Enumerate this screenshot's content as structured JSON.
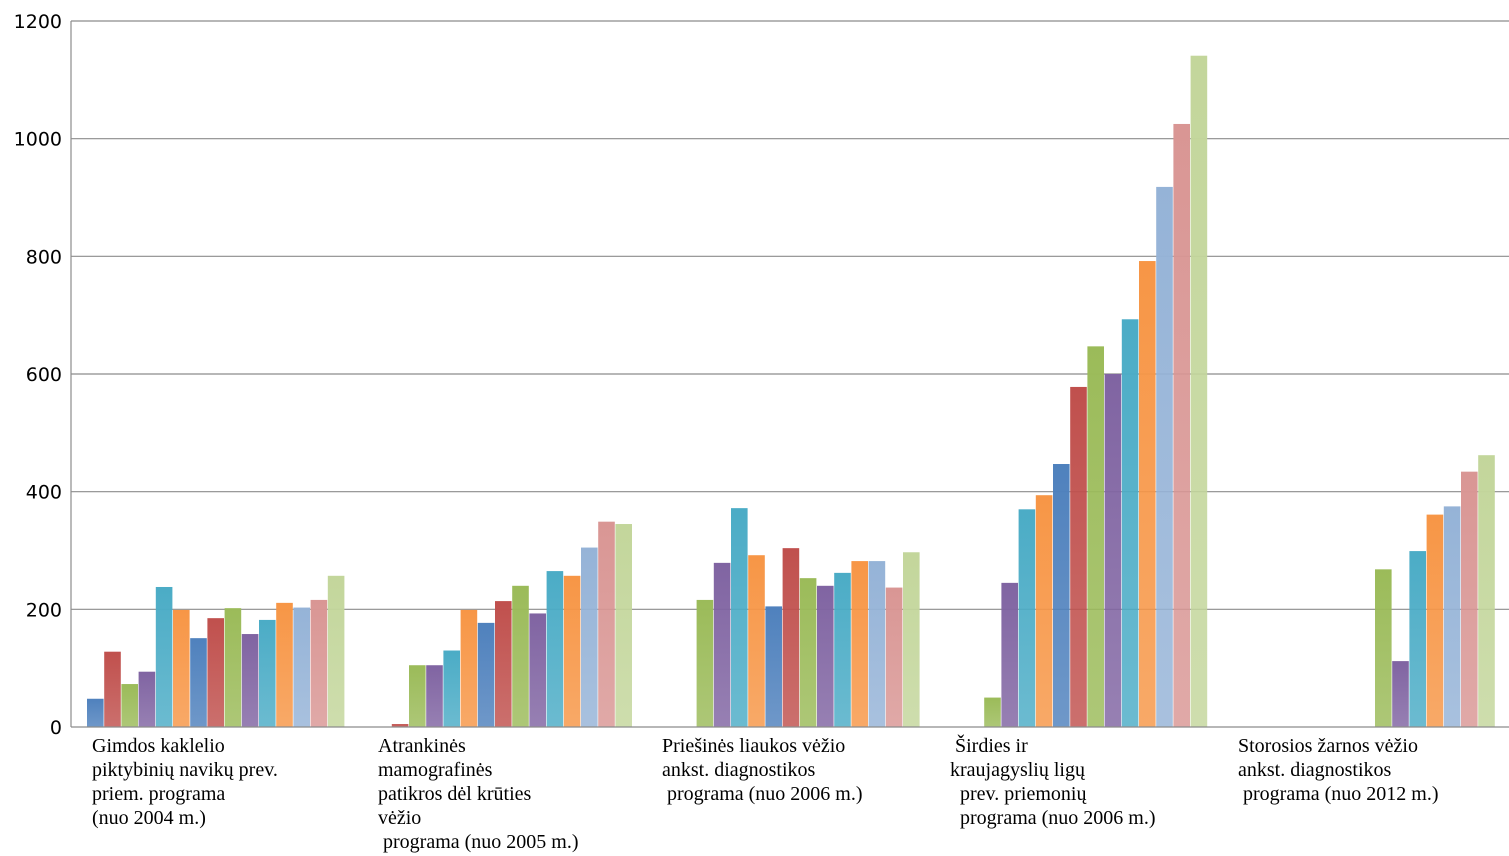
{
  "chart_data": {
    "type": "bar",
    "categories": [
      "Gimdos kaklelio\npiktybinių navikų prev.\npriem. programa\n(nuo 2004 m.)",
      "Atrankinės\nmamografinės\npatikros dėl krūties\nvėžio\n programa (nuo 2005 m.)",
      "Priešinės liaukos vėžio\nankst. diagnostikos\n programa (nuo 2006 m.)",
      " Širdies ir\nkraujagyslių ligų\n  prev. priemonių\n  programa (nuo 2006 m.)",
      "Storosios žarnos vėžio\nankst. diagnostikos\n programa (nuo 2012 m.)"
    ],
    "series": [
      {
        "color": "#4f81bd",
        "values": [
          48,
          0,
          0,
          0,
          0
        ]
      },
      {
        "color": "#c0504d",
        "values": [
          128,
          5,
          0,
          0,
          0
        ]
      },
      {
        "color": "#9bbb59",
        "values": [
          73,
          105,
          216,
          50,
          0
        ]
      },
      {
        "color": "#8064a2",
        "values": [
          94,
          105,
          279,
          245,
          0
        ]
      },
      {
        "color": "#4bacc6",
        "values": [
          238,
          130,
          372,
          370,
          0
        ]
      },
      {
        "color": "#f79646",
        "values": [
          199,
          199,
          292,
          394,
          0
        ]
      },
      {
        "color": "#4f81bd",
        "values": [
          151,
          177,
          205,
          447,
          0
        ]
      },
      {
        "color": "#c0504d",
        "values": [
          185,
          214,
          304,
          578,
          0
        ]
      },
      {
        "color": "#9bbb59",
        "values": [
          202,
          240,
          253,
          647,
          268
        ]
      },
      {
        "color": "#8064a2",
        "values": [
          158,
          193,
          240,
          600,
          112
        ]
      },
      {
        "color": "#4bacc6",
        "values": [
          182,
          265,
          262,
          693,
          299
        ]
      },
      {
        "color": "#f79646",
        "values": [
          211,
          257,
          282,
          792,
          361
        ]
      },
      {
        "color": "#95b3d7",
        "values": [
          203,
          305,
          282,
          918,
          375
        ]
      },
      {
        "color": "#d99694",
        "values": [
          216,
          349,
          237,
          1025,
          434
        ]
      },
      {
        "color": "#c3d69b",
        "values": [
          257,
          345,
          297,
          1141,
          462
        ]
      }
    ],
    "ylim": [
      0,
      1200
    ],
    "yticks": [
      0,
      200,
      400,
      600,
      800,
      1000,
      1200
    ],
    "grid": true,
    "legend": "none"
  }
}
